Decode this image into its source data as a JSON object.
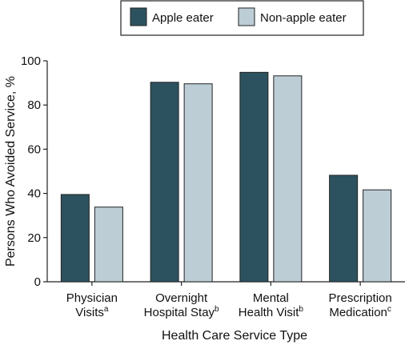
{
  "chart_data": {
    "type": "bar",
    "title": "",
    "xlabel": "Health Care Service Type",
    "ylabel": "Persons Who Avoided Service, %",
    "ylim": [
      0,
      100
    ],
    "yticks": [
      0,
      20,
      40,
      60,
      80,
      100
    ],
    "grid": false,
    "legend_position": "top",
    "categories": [
      {
        "lines": [
          "Physician",
          "Visits"
        ],
        "footnote": "a"
      },
      {
        "lines": [
          "Overnight",
          "Hospital Stay"
        ],
        "footnote": "b"
      },
      {
        "lines": [
          "Mental",
          "Health Visit"
        ],
        "footnote": "b"
      },
      {
        "lines": [
          "Prescription",
          "Medication"
        ],
        "footnote": "c"
      }
    ],
    "series": [
      {
        "name": "Apple eater",
        "color": "#2d525f",
        "values": [
          39.5,
          90.3,
          94.8,
          48.2
        ]
      },
      {
        "name": "Non-apple eater",
        "color": "#bccdd6",
        "values": [
          33.8,
          89.6,
          93.2,
          41.6
        ]
      }
    ]
  }
}
